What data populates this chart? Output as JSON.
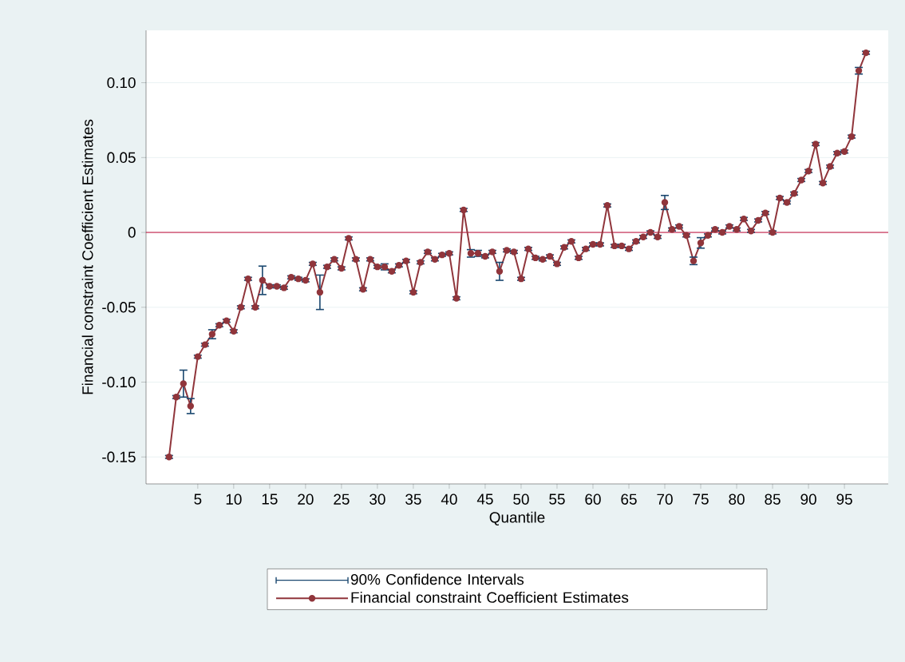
{
  "chart_data": {
    "type": "line",
    "xlabel": "Quantile",
    "ylabel": "Financial constraint Coefficient Estimates",
    "annotations": [
      "90% Confidence Intervals"
    ],
    "x": [
      1,
      2,
      3,
      4,
      5,
      6,
      7,
      8,
      9,
      10,
      11,
      12,
      13,
      14,
      15,
      16,
      17,
      18,
      19,
      20,
      21,
      22,
      23,
      24,
      25,
      26,
      27,
      28,
      29,
      30,
      31,
      32,
      33,
      34,
      35,
      36,
      37,
      38,
      39,
      40,
      41,
      42,
      43,
      44,
      45,
      46,
      47,
      48,
      49,
      50,
      51,
      52,
      53,
      54,
      55,
      56,
      57,
      58,
      59,
      60,
      61,
      62,
      63,
      64,
      65,
      66,
      67,
      68,
      69,
      70,
      71,
      72,
      73,
      74,
      75,
      76,
      77,
      78,
      79,
      80,
      81,
      82,
      83,
      84,
      85,
      86,
      87,
      88,
      89,
      90,
      91,
      92,
      93,
      94,
      95,
      96,
      97,
      98
    ],
    "series": [
      {
        "name": "Financial constraint Coefficient Estimates",
        "color": "#90353b",
        "values": [
          -0.15,
          -0.11,
          -0.101,
          -0.116,
          -0.083,
          -0.075,
          -0.068,
          -0.062,
          -0.059,
          -0.066,
          -0.05,
          -0.031,
          -0.05,
          -0.032,
          -0.036,
          -0.036,
          -0.037,
          -0.03,
          -0.031,
          -0.032,
          -0.021,
          -0.04,
          -0.023,
          -0.018,
          -0.024,
          -0.004,
          -0.018,
          -0.038,
          -0.018,
          -0.023,
          -0.023,
          -0.026,
          -0.022,
          -0.019,
          -0.04,
          -0.02,
          -0.013,
          -0.018,
          -0.015,
          -0.014,
          -0.044,
          0.015,
          -0.014,
          -0.014,
          -0.016,
          -0.013,
          -0.026,
          -0.012,
          -0.013,
          -0.031,
          -0.011,
          -0.017,
          -0.018,
          -0.016,
          -0.021,
          -0.01,
          -0.006,
          -0.017,
          -0.011,
          -0.008,
          -0.008,
          0.018,
          -0.009,
          -0.009,
          -0.011,
          -0.006,
          -0.003,
          0.0,
          -0.003,
          0.02,
          0.002,
          0.004,
          -0.002,
          -0.019,
          -0.007,
          -0.002,
          0.002,
          0.0,
          0.004,
          0.002,
          0.009,
          0.001,
          0.008,
          0.013,
          0.0,
          0.023,
          0.02,
          0.026,
          0.035,
          0.041,
          0.059,
          0.033,
          0.044,
          0.053,
          0.054,
          0.064,
          0.108,
          0.12
        ],
        "errors": [
          0.001,
          0.001,
          0.009,
          0.005,
          0.001,
          0.001,
          0.003,
          0.001,
          0.001,
          0.001,
          0.001,
          0.001,
          0.001,
          0.0095,
          0.001,
          0.001,
          0.001,
          0.001,
          0.001,
          0.001,
          0.001,
          0.0115,
          0.001,
          0.001,
          0.001,
          0.001,
          0.001,
          0.001,
          0.001,
          0.001,
          0.002,
          0.001,
          0.001,
          0.001,
          0.001,
          0.001,
          0.001,
          0.001,
          0.001,
          0.001,
          0.001,
          0.001,
          0.0025,
          0.002,
          0.001,
          0.001,
          0.006,
          0.001,
          0.001,
          0.001,
          0.001,
          0.001,
          0.001,
          0.001,
          0.001,
          0.001,
          0.001,
          0.001,
          0.001,
          0.001,
          0.001,
          0.001,
          0.001,
          0.001,
          0.001,
          0.001,
          0.001,
          0.001,
          0.001,
          0.0047,
          0.001,
          0.001,
          0.001,
          0.0025,
          0.0035,
          0.001,
          0.001,
          0.001,
          0.001,
          0.001,
          0.001,
          0.001,
          0.001,
          0.001,
          0.001,
          0.001,
          0.001,
          0.001,
          0.001,
          0.001,
          0.001,
          0.001,
          0.001,
          0.001,
          0.001,
          0.001,
          0.0022,
          0.001
        ]
      }
    ],
    "xlim": [
      -2.2,
      101.1
    ],
    "ylim": [
      -0.168,
      0.135
    ],
    "xticks": [
      5,
      10,
      15,
      20,
      25,
      30,
      35,
      40,
      45,
      50,
      55,
      60,
      65,
      70,
      75,
      80,
      85,
      90,
      95
    ],
    "yticks": [
      {
        "value": -0.15,
        "label": "-0.15"
      },
      {
        "value": -0.1,
        "label": "-0.10"
      },
      {
        "value": -0.05,
        "label": "-0.05"
      },
      0,
      {
        "value": 0.05,
        "label": "0.05"
      },
      {
        "value": 0.1,
        "label": "0.10"
      }
    ],
    "ref_lines": [
      {
        "axis": "y",
        "value": 0,
        "color": "#c10534"
      }
    ],
    "grid": "y",
    "legend": "bottom",
    "marker": "circle",
    "line_style": "solid"
  }
}
